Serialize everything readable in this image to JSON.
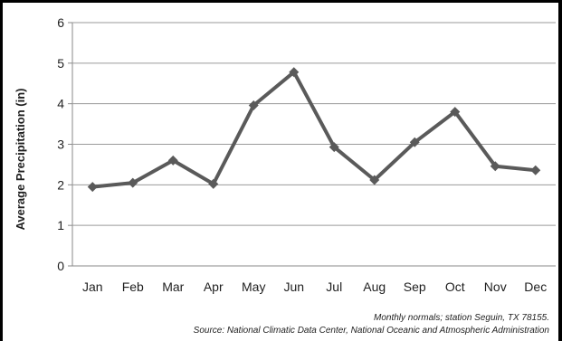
{
  "chart_data": {
    "type": "line",
    "categories": [
      "Jan",
      "Feb",
      "Mar",
      "Apr",
      "May",
      "Jun",
      "Jul",
      "Aug",
      "Sep",
      "Oct",
      "Nov",
      "Dec"
    ],
    "series": [
      {
        "values": [
          1.95,
          2.05,
          2.6,
          2.02,
          3.96,
          4.78,
          2.93,
          2.12,
          3.05,
          3.8,
          2.46,
          2.36
        ]
      }
    ],
    "ylabel": "Average Precipitation (in)",
    "xlabel": "",
    "ylim": [
      0,
      6
    ],
    "yticks": [
      0,
      1,
      2,
      3,
      4,
      5,
      6
    ],
    "grid": true,
    "line_color": "#5a5a5a",
    "marker": "diamond",
    "note": "Monthly normals; station Seguin, TX 78155.",
    "source": "Source: National Climatic Data Center, National Oceanic and Atmospheric Administration"
  }
}
